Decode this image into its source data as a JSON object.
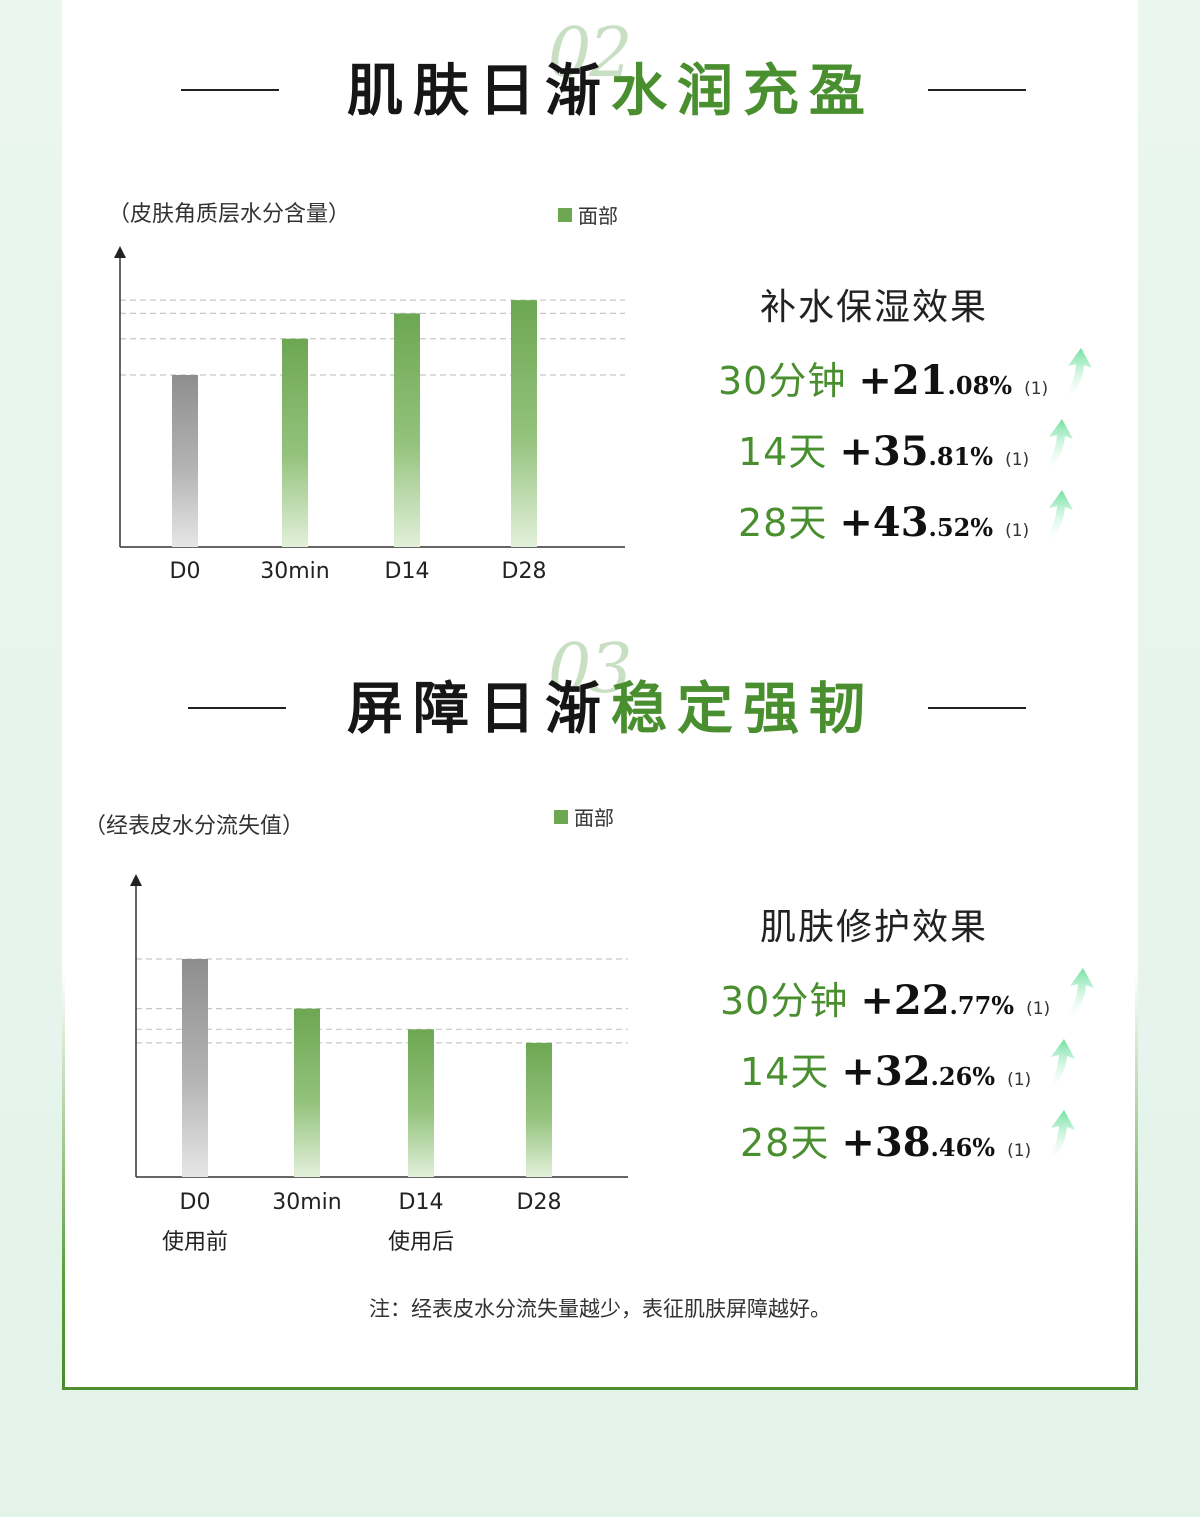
{
  "sections": [
    {
      "number": "02",
      "title_dark": "肌肤日渐",
      "title_green": "水润充盈",
      "chart_caption": "（皮肤角质层水分含量）",
      "legend": "面部",
      "stat_title": "补水保湿效果",
      "stats": [
        {
          "label": "30分钟",
          "plus": "+",
          "big": "21",
          "small": ".08%",
          "ref": "(1)"
        },
        {
          "label": "14天",
          "plus": "+",
          "big": "35",
          "small": ".81%",
          "ref": "(1)"
        },
        {
          "label": "28天",
          "plus": "+",
          "big": "43",
          "small": ".52%",
          "ref": "(1)"
        }
      ]
    },
    {
      "number": "03",
      "title_dark": "屏障日渐",
      "title_green": "稳定强韧",
      "chart_caption": "（经表皮水分流失值）",
      "legend": "面部",
      "stat_title": "肌肤修护效果",
      "stats": [
        {
          "label": "30分钟",
          "plus": "+",
          "big": "22",
          "small": ".77%",
          "ref": "(1)"
        },
        {
          "label": "14天",
          "plus": "+",
          "big": "32",
          "small": ".26%",
          "ref": "(1)"
        },
        {
          "label": "28天",
          "plus": "+",
          "big": "38",
          "small": ".46%",
          "ref": "(1)"
        }
      ]
    }
  ],
  "note": "注：经表皮水分流失量越少，表征肌肤屏障越好。",
  "colors": {
    "green": "#4a8f2f",
    "bar_green": "#6da752",
    "bar_gray": "#8e8e8e"
  },
  "icons": {
    "trend": "up-arrow-icon"
  },
  "chart_data": [
    {
      "type": "bar",
      "categories": [
        "D0",
        "30min",
        "D14",
        "D28"
      ],
      "sublabels": [
        "",
        "",
        "",
        ""
      ],
      "series": [
        {
          "name": "面部",
          "values": [
            100,
            121.08,
            135.81,
            143.52
          ]
        }
      ],
      "ylabel": "（皮肤角质层水分含量）",
      "ylim": [
        0,
        175
      ],
      "grid": "dashed at bar tops",
      "legend_position": "top-right"
    },
    {
      "type": "bar",
      "categories": [
        "D0",
        "30min",
        "D14",
        "D28"
      ],
      "sublabels": [
        "使用前",
        "",
        "使用后",
        ""
      ],
      "series": [
        {
          "name": "面部",
          "values": [
            100,
            77.23,
            67.74,
            61.54
          ]
        }
      ],
      "ylabel": "（经表皮水分流失值）",
      "ylim": [
        0,
        139
      ],
      "grid": "dashed at bar tops",
      "legend_position": "top-right"
    }
  ]
}
